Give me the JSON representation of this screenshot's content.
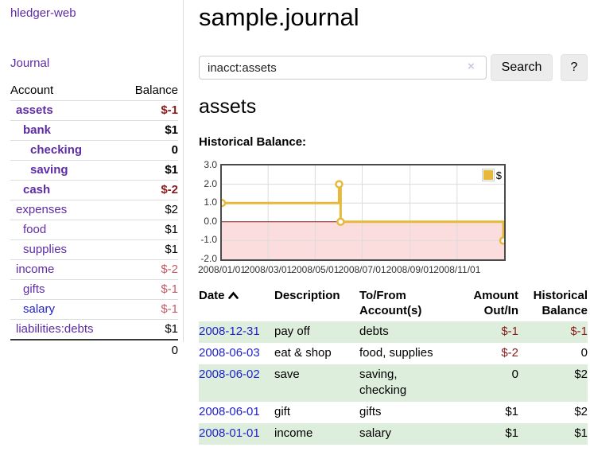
{
  "app": {
    "title": "hledger-web",
    "nav_journal": "Journal"
  },
  "sidebar": {
    "accounts_header": {
      "account": "Account",
      "balance": "Balance"
    },
    "accounts": [
      {
        "name": "assets",
        "balance": "$-1",
        "level": 1,
        "emph": true,
        "neg": "dark",
        "link": "purple"
      },
      {
        "name": "bank",
        "balance": "$1",
        "level": 2,
        "emph": true,
        "neg": "none",
        "link": "purple"
      },
      {
        "name": "checking",
        "balance": "0",
        "level": 3,
        "emph": true,
        "neg": "none",
        "link": "purple"
      },
      {
        "name": "saving",
        "balance": "$1",
        "level": 3,
        "emph": true,
        "neg": "none",
        "link": "purple"
      },
      {
        "name": "cash",
        "balance": "$-2",
        "level": 2,
        "emph": true,
        "neg": "dark",
        "link": "purple"
      },
      {
        "name": "expenses",
        "balance": "$2",
        "level": 1,
        "emph": false,
        "neg": "none",
        "link": "purple"
      },
      {
        "name": "food",
        "balance": "$1",
        "level": 2,
        "emph": false,
        "neg": "none",
        "link": "purple"
      },
      {
        "name": "supplies",
        "balance": "$1",
        "level": 2,
        "emph": false,
        "neg": "none",
        "link": "purple"
      },
      {
        "name": "income",
        "balance": "$-2",
        "level": 1,
        "emph": false,
        "neg": "soft",
        "link": "purple"
      },
      {
        "name": "gifts",
        "balance": "$-1",
        "level": 2,
        "emph": false,
        "neg": "soft",
        "link": "purple"
      },
      {
        "name": "salary",
        "balance": "$-1",
        "level": 2,
        "emph": false,
        "neg": "soft",
        "link": "blue"
      },
      {
        "name": "liabilities:debts",
        "balance": "$1",
        "level": 1,
        "emph": false,
        "neg": "none",
        "link": "purple"
      }
    ],
    "total": "0"
  },
  "header": {
    "title": "sample.journal"
  },
  "search": {
    "value": "inacct:assets",
    "clear_icon": "×",
    "button_label": "Search",
    "help_label": "?"
  },
  "account_page": {
    "heading": "assets",
    "chart_label": "Historical Balance:"
  },
  "chart_data": {
    "type": "line",
    "title": "Historical Balance:",
    "series": [
      {
        "name": "$",
        "step": true,
        "points": [
          [
            "2008-01-01",
            1
          ],
          [
            "2008-06-01",
            2
          ],
          [
            "2008-06-03",
            0
          ],
          [
            "2008-12-31",
            -1
          ]
        ]
      }
    ],
    "x_range": [
      "2008-01-01",
      "2009-01-01"
    ],
    "x_ticks": [
      "2008/01/01",
      "2008/03/01",
      "2008/05/01",
      "2008/07/01",
      "2008/09/01",
      "2008/11/01"
    ],
    "y_range": [
      -2,
      3
    ],
    "y_ticks": [
      "3.0",
      "2.0",
      "1.0",
      "0.0",
      "-1.0",
      "-2.0"
    ],
    "grid": true,
    "legend": {
      "label": "$",
      "position": "top-right"
    }
  },
  "register": {
    "columns": [
      "Date",
      "Description",
      "To/From Account(s)",
      "Amount Out/In",
      "Historical Balance"
    ],
    "rows": [
      {
        "date": "2008-12-31",
        "description": "pay off",
        "accounts_lines": [
          "debts"
        ],
        "amount": "$-1",
        "amount_neg": true,
        "balance": "$-1",
        "balance_neg": true,
        "shaded": true
      },
      {
        "date": "2008-06-03",
        "description": "eat & shop",
        "accounts_lines": [
          "food, supplies"
        ],
        "amount": "$-2",
        "amount_neg": true,
        "balance": "0",
        "balance_neg": false,
        "shaded": false
      },
      {
        "date": "2008-06-02",
        "description": "save",
        "accounts_lines": [
          "saving,",
          "checking"
        ],
        "amount": "0",
        "amount_neg": false,
        "balance": "$2",
        "balance_neg": false,
        "shaded": true
      },
      {
        "date": "2008-06-01",
        "description": "gift",
        "accounts_lines": [
          "gifts"
        ],
        "amount": "$1",
        "amount_neg": false,
        "balance": "$2",
        "balance_neg": false,
        "shaded": false
      },
      {
        "date": "2008-01-01",
        "description": "income",
        "accounts_lines": [
          "salary"
        ],
        "amount": "$1",
        "amount_neg": false,
        "balance": "$1",
        "balance_neg": false,
        "shaded": true
      }
    ]
  },
  "colors": {
    "purple_link": "#5e2ca5",
    "blue_link": "#2222cc",
    "negative_dark": "#8b1a1a",
    "negative_soft": "#c25b65",
    "row_green": "#ddeedd",
    "chart_yellow": "#e6b93d",
    "chart_pink": "#fbdddd",
    "zero_line": "#8b2222",
    "grid_line": "#dcdcdc"
  }
}
